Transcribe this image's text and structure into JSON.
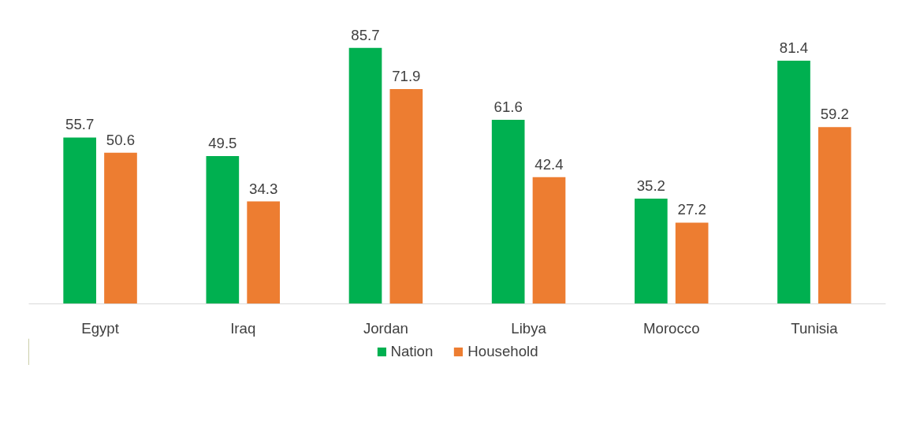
{
  "chart_data": {
    "type": "bar",
    "categories": [
      "Egypt",
      "Iraq",
      "Jordan",
      "Libya",
      "Morocco",
      "Tunisia"
    ],
    "series": [
      {
        "name": "Nation",
        "color": "#00b050",
        "values": [
          55.7,
          49.5,
          85.7,
          61.6,
          35.2,
          81.4
        ]
      },
      {
        "name": "Household",
        "color": "#ed7d31",
        "values": [
          50.6,
          34.3,
          71.9,
          42.4,
          27.2,
          59.2
        ]
      }
    ],
    "data_labels": true,
    "legend": "bottom",
    "tick_labels": "x"
  }
}
